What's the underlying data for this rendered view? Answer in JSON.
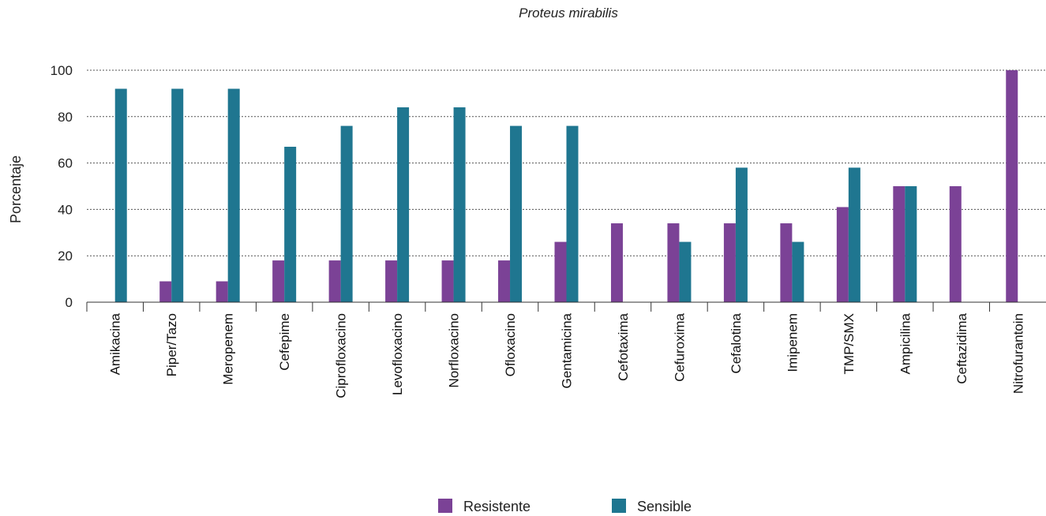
{
  "chart_data": {
    "type": "bar",
    "title": "Proteus mirabilis",
    "xlabel": "",
    "ylabel": "Porcentaje",
    "ylim": [
      0,
      100
    ],
    "yticks": [
      0,
      20,
      40,
      60,
      80,
      100
    ],
    "grid": "horizontal dotted",
    "legend_position": "bottom",
    "categories": [
      "Amikacina",
      "Piper/Tazo",
      "Meropenem",
      "Cefepime",
      "Ciprofloxacino",
      "Levofloxacino",
      "Norfloxacino",
      "Ofloxacino",
      "Gentamicina",
      "Cefotaxima",
      "Cefuroxima",
      "Cefalotina",
      "Imipenem",
      "TMP/SMX",
      "Ampicilina",
      "Ceftazidima",
      "Nitrofurantoin"
    ],
    "series": [
      {
        "name": "Resistente",
        "color": "#7b4296",
        "values": [
          0,
          9,
          9,
          18,
          18,
          18,
          18,
          18,
          26,
          34,
          34,
          34,
          34,
          41,
          50,
          50,
          100
        ]
      },
      {
        "name": "Sensible",
        "color": "#1f7690",
        "values": [
          92,
          92,
          92,
          67,
          76,
          84,
          84,
          76,
          76,
          0,
          26,
          58,
          26,
          58,
          50,
          0,
          0
        ]
      }
    ]
  }
}
